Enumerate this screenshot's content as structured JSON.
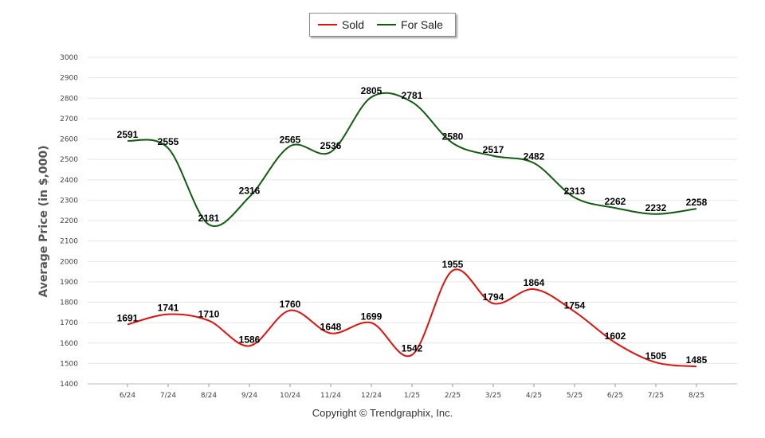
{
  "chart_data": {
    "type": "line",
    "categories": [
      "6/24",
      "7/24",
      "8/24",
      "9/24",
      "10/24",
      "11/24",
      "12/24",
      "1/25",
      "2/25",
      "3/25",
      "4/25",
      "5/25",
      "6/25",
      "7/25",
      "8/25"
    ],
    "series": [
      {
        "name": "Sold",
        "color": "#e3110c",
        "values": [
          1691,
          1741,
          1710,
          1586,
          1760,
          1648,
          1699,
          1542,
          1955,
          1794,
          1864,
          1754,
          1602,
          1505,
          1485
        ]
      },
      {
        "name": "For Sale",
        "color": "#0f5e10",
        "values": [
          2591,
          2555,
          2181,
          2316,
          2565,
          2536,
          2805,
          2781,
          2580,
          2517,
          2482,
          2313,
          2262,
          2232,
          2258
        ]
      }
    ],
    "ylabel": "Average Price (in $,000)",
    "xlabel": "",
    "ylim": [
      1400,
      3000
    ],
    "yticks": [
      1400,
      1500,
      1600,
      1700,
      1800,
      1900,
      2000,
      2100,
      2200,
      2300,
      2400,
      2500,
      2600,
      2700,
      2800,
      2900,
      3000
    ],
    "grid": true,
    "legend_position": "top-center"
  },
  "footer": "Copyright © Trendgraphix, Inc."
}
